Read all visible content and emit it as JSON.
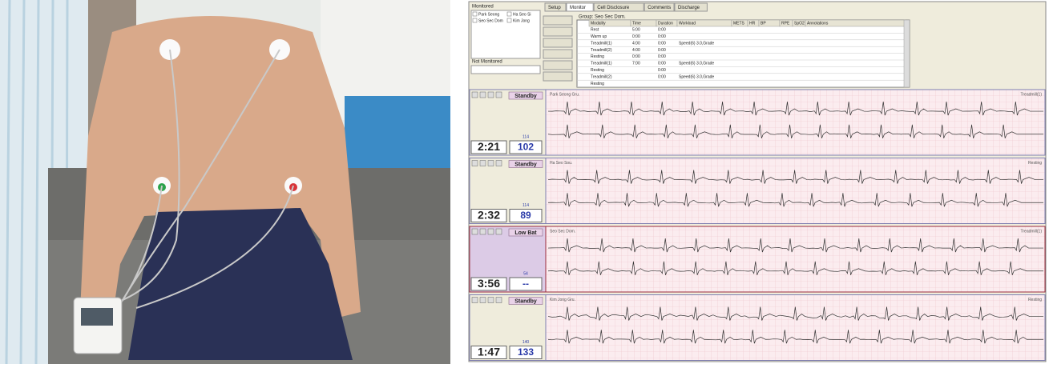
{
  "monitored": {
    "title": "Monitored",
    "patients": [
      "Park Seong",
      "Ha Seo Si",
      "Seo Sec Dom",
      "Kim Jong"
    ]
  },
  "not_monitored": {
    "title": "Not Monitored"
  },
  "tabs": [
    "Setup",
    "Monitor",
    "Cell Disclosure",
    "Comments",
    "Discharge"
  ],
  "group": "Group: Seo Sec Dom.",
  "table": {
    "columns": [
      "Modality",
      "Time",
      "Duration",
      "Workload",
      "METS",
      "HR",
      "BP",
      "RPE",
      "SpO2",
      "Annotations"
    ],
    "rows": [
      [
        "Rest",
        "5:00",
        "0:00",
        ""
      ],
      [
        "Warm up",
        "0:00",
        "0:00",
        ""
      ],
      [
        "Treadmill(1)",
        "4:00",
        "0:00",
        "Speed(6) 3.0,Grade"
      ],
      [
        "Treadmill(2)",
        "4:00",
        "0:00",
        ""
      ],
      [
        "Resting",
        "0:00",
        "0:00",
        ""
      ],
      [
        "Treadmill(1)",
        "7:00",
        "0:00",
        "Speed(6) 3.0,Grade"
      ],
      [
        "Resting",
        "",
        "0:00",
        ""
      ],
      [
        "Treadmill(2)",
        "",
        "0:00",
        "Speed(6) 3.0,Grade"
      ],
      [
        "Resting",
        "",
        "",
        ""
      ]
    ]
  },
  "channels": [
    {
      "name": "Park Seong Gru.",
      "status": "Standby",
      "elapsed": "2:21",
      "target": 114,
      "hr": 102,
      "stage": "Treadmill(1)"
    },
    {
      "name": "Ha Seo Sou.",
      "status": "Standby",
      "elapsed": "2:32",
      "target": 114,
      "hr": 89,
      "stage": "Resting"
    },
    {
      "name": "Seo Sec Dom.",
      "status": "Low Bat",
      "elapsed": "3:56",
      "target": 54,
      "hr": "--",
      "stage": "Treadmill(1)"
    },
    {
      "name": "Kim Jong Gru.",
      "status": "Standby",
      "elapsed": "1:47",
      "target": 140,
      "hr": 133,
      "stage": "Resting"
    }
  ]
}
